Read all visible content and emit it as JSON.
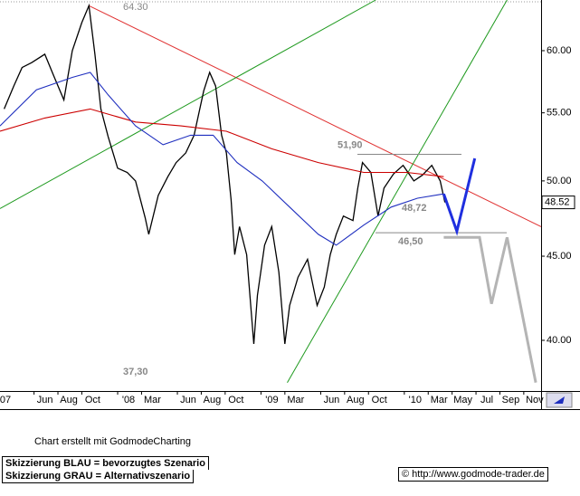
{
  "chart_data": {
    "type": "line",
    "log_scale": true,
    "grid": false,
    "xlim": [
      2.15,
      47.45
    ],
    "ylim": [
      37.26,
      64.41
    ],
    "xticks": [
      {
        "value": 0,
        "label": "07"
      },
      {
        "value": 5,
        "label": "Jun"
      },
      {
        "value": 7,
        "label": "Aug"
      },
      {
        "value": 9,
        "label": "Oct"
      },
      {
        "value": 12,
        "label": "'08"
      },
      {
        "value": 14,
        "label": "Mar"
      },
      {
        "value": 17,
        "label": "Jun"
      },
      {
        "value": 19,
        "label": "Aug"
      },
      {
        "value": 21,
        "label": "Oct"
      },
      {
        "value": 24,
        "label": "'09"
      },
      {
        "value": 26,
        "label": "Mar"
      },
      {
        "value": 29,
        "label": "Jun"
      },
      {
        "value": 31,
        "label": "Aug"
      },
      {
        "value": 33,
        "label": "Oct"
      },
      {
        "value": 36,
        "label": "'10"
      },
      {
        "value": 38,
        "label": "Mar"
      },
      {
        "value": 40,
        "label": "May"
      },
      {
        "value": 42,
        "label": "Jul"
      },
      {
        "value": 44,
        "label": "Sep"
      },
      {
        "value": 46,
        "label": "Nov"
      }
    ],
    "yticks": [
      {
        "value": 40,
        "label": "40.00"
      },
      {
        "value": 45,
        "label": "45.00"
      },
      {
        "value": 50,
        "label": "50.00"
      },
      {
        "value": 55,
        "label": "55.00"
      },
      {
        "value": 60,
        "label": "60.00"
      }
    ],
    "series": [
      {
        "color": "#000000",
        "x": [
          2.5,
          3.3,
          4.0,
          4.8,
          5.9,
          6.7,
          7.5,
          8.2,
          9.0,
          9.6,
          10.1,
          10.6,
          11.2,
          12.0,
          12.8,
          13.5,
          14.3,
          14.6,
          15.4,
          16.2,
          16.9,
          17.7,
          18.4,
          19.2,
          19.7,
          20.2,
          20.7,
          21.1,
          21.5,
          21.8,
          22.2,
          22.8,
          23.4,
          23.7,
          24.3,
          24.9,
          25.5,
          26.0,
          26.4,
          27.1,
          27.9,
          28.7,
          29.3,
          29.8,
          30.3,
          30.9,
          31.7,
          32.1,
          32.5,
          33.2,
          33.8,
          34.3,
          35.1,
          35.9,
          36.8,
          37.5,
          38.3,
          39.0,
          39.4
        ],
        "values": [
          55.3,
          57.1,
          58.6,
          59.0,
          59.7,
          57.8,
          56.0,
          60.0,
          62.4,
          63.9,
          59.7,
          55.3,
          53.2,
          50.9,
          50.6,
          50.0,
          47.5,
          46.4,
          49.0,
          50.3,
          51.3,
          52.0,
          53.3,
          56.7,
          58.2,
          57.1,
          53.3,
          52.0,
          48.7,
          45.1,
          46.9,
          45.1,
          39.8,
          42.6,
          45.7,
          46.9,
          44.0,
          39.8,
          42.0,
          43.7,
          44.8,
          42.0,
          43.1,
          45.1,
          46.4,
          47.6,
          47.3,
          49.5,
          51.3,
          50.6,
          47.6,
          49.5,
          50.5,
          51.1,
          50.0,
          50.4,
          51.1,
          50.0,
          48.52
        ]
      },
      {
        "color": "#cc0000",
        "x": [
          2.15,
          5.9,
          9.7,
          13.5,
          17.3,
          21.1,
          24.9,
          28.8,
          32.6,
          36.2,
          39.3
        ],
        "values": [
          53.6,
          54.6,
          55.3,
          54.3,
          54.0,
          53.6,
          52.3,
          51.3,
          50.6,
          50.6,
          50.3
        ]
      },
      {
        "color": "#1f2fbf",
        "x": [
          2.15,
          5.2,
          8.2,
          9.7,
          11.2,
          13.5,
          15.8,
          18.1,
          20.0,
          22.0,
          24.1,
          26.4,
          28.8,
          30.3,
          32.6,
          34.9,
          37.1,
          39.3
        ],
        "values": [
          54.0,
          56.8,
          57.8,
          58.2,
          56.4,
          54.0,
          52.6,
          53.3,
          53.3,
          51.3,
          50.0,
          48.2,
          46.4,
          45.7,
          47.0,
          48.2,
          48.8,
          49.1
        ]
      }
    ],
    "trendlines": [
      {
        "color": "#e03030",
        "x": [
          9.6,
          47.45
        ],
        "values": [
          63.9,
          46.9
        ]
      },
      {
        "color": "#1f9a1f",
        "x": [
          2.15,
          33.6
        ],
        "values": [
          48.1,
          64.41
        ]
      },
      {
        "color": "#1f9a1f",
        "x": [
          26.2,
          44.6
        ],
        "values": [
          37.7,
          64.41
        ]
      }
    ],
    "scenarios": [
      {
        "color": "#1f2fdf",
        "x": [
          39.3,
          40.4,
          41.9
        ],
        "values": [
          49.1,
          46.6,
          51.6
        ]
      },
      {
        "color": "#b4b4b4",
        "x": [
          39.3,
          42.3,
          43.3,
          44.6,
          47.0
        ],
        "values": [
          46.2,
          46.2,
          42.1,
          46.2,
          37.7
        ]
      }
    ],
    "levels": [
      {
        "value": 51.9,
        "label": "51,90"
      },
      {
        "value": 46.5,
        "label": "46,50"
      }
    ],
    "annotations": [
      "64.30",
      "48,72",
      "37,30"
    ],
    "last_price": {
      "value": 48.52,
      "label": "48.52"
    },
    "footer": {
      "credit": "Chart erstellt mit GodmodeCharting",
      "legend_blue": "Skizzierung BLAU = bevorzugtes Szenario",
      "legend_grey": "Skizzierung GRAU = Alternativszenario",
      "source": "© http://www.godmode-trader.de"
    }
  }
}
